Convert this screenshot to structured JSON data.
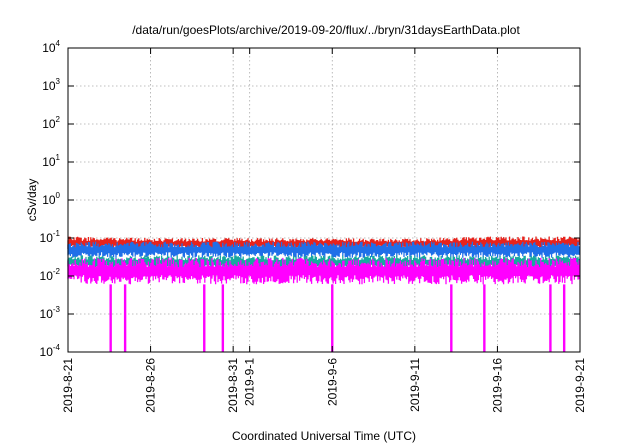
{
  "chart_data": {
    "type": "line",
    "title": "/data/run/goesPlots/archive/2019-09-20/flux/../bryn/31daysEarthData.plot",
    "xlabel": "Coordinated Universal Time (UTC)",
    "ylabel": "cSv/day",
    "yscale": "log",
    "grid": true,
    "xlim": [
      "2019-08-21",
      "2019-09-21"
    ],
    "ylim": [
      0.0001,
      10000
    ],
    "x_ticks": [
      "2019-8-21",
      "2019-8-26",
      "2019-8-31",
      "2019-9-1",
      "2019-9-6",
      "2019-9-11",
      "2019-9-16",
      "2019-9-21"
    ],
    "x_tick_dates": [
      "2019-08-21",
      "2019-08-26",
      "2019-08-31",
      "2019-09-01",
      "2019-09-06",
      "2019-09-11",
      "2019-09-16",
      "2019-09-21"
    ],
    "y_ticks": [
      {
        "base": "10",
        "exp": "-4"
      },
      {
        "base": "10",
        "exp": "-3"
      },
      {
        "base": "10",
        "exp": "-2"
      },
      {
        "base": "10",
        "exp": "-1"
      },
      {
        "base": "10",
        "exp": "0"
      },
      {
        "base": "10",
        "exp": "1"
      },
      {
        "base": "10",
        "exp": "2"
      },
      {
        "base": "10",
        "exp": "3"
      },
      {
        "base": "10",
        "exp": "4"
      }
    ],
    "y_tick_values": [
      0.0001,
      0.001,
      0.01,
      0.1,
      1,
      10,
      100,
      1000,
      10000
    ],
    "series": [
      {
        "color": "#e8231c",
        "x": [
          "2019-08-21",
          "2019-08-26",
          "2019-08-31",
          "2019-09-06",
          "2019-09-11",
          "2019-09-16",
          "2019-09-21"
        ],
        "low": [
          0.05,
          0.05,
          0.05,
          0.05,
          0.05,
          0.05,
          0.05
        ],
        "high": [
          0.11,
          0.1,
          0.1,
          0.1,
          0.1,
          0.11,
          0.11
        ]
      },
      {
        "color": "#1f6fe8",
        "x": [
          "2019-08-21",
          "2019-08-26",
          "2019-08-31",
          "2019-09-06",
          "2019-09-11",
          "2019-09-16",
          "2019-09-21"
        ],
        "low": [
          0.03,
          0.03,
          0.03,
          0.03,
          0.03,
          0.03,
          0.03
        ],
        "high": [
          0.08,
          0.08,
          0.08,
          0.08,
          0.08,
          0.08,
          0.08
        ]
      },
      {
        "color": "#18a8a0",
        "x": [
          "2019-08-21",
          "2019-08-26",
          "2019-08-31",
          "2019-09-06",
          "2019-09-11",
          "2019-09-16",
          "2019-09-21"
        ],
        "low": [
          0.015,
          0.015,
          0.015,
          0.015,
          0.015,
          0.015,
          0.015
        ],
        "high": [
          0.035,
          0.035,
          0.035,
          0.035,
          0.035,
          0.035,
          0.035
        ]
      },
      {
        "color": "#ff00ff",
        "x": [
          "2019-08-21",
          "2019-08-26",
          "2019-08-31",
          "2019-09-06",
          "2019-09-11",
          "2019-09-16",
          "2019-09-21"
        ],
        "low": [
          0.006,
          0.006,
          0.006,
          0.006,
          0.006,
          0.006,
          0.006
        ],
        "high": [
          0.03,
          0.03,
          0.03,
          0.03,
          0.03,
          0.03,
          0.03
        ]
      }
    ],
    "dropouts": [
      {
        "date": "2019-08-23T14:00",
        "value": 0.0001
      },
      {
        "date": "2019-08-24T11:00",
        "value": 0.0001
      },
      {
        "date": "2019-08-29T06:00",
        "value": 0.0001
      },
      {
        "date": "2019-08-30T09:00",
        "value": 0.0001
      },
      {
        "date": "2019-09-06T00:00",
        "value": 0.0001
      },
      {
        "date": "2019-09-13T05:00",
        "value": 0.0001
      },
      {
        "date": "2019-09-15T05:00",
        "value": 0.0001
      },
      {
        "date": "2019-09-19T05:00",
        "value": 0.0001
      },
      {
        "date": "2019-09-20T01:00",
        "value": 0.0001
      }
    ]
  }
}
